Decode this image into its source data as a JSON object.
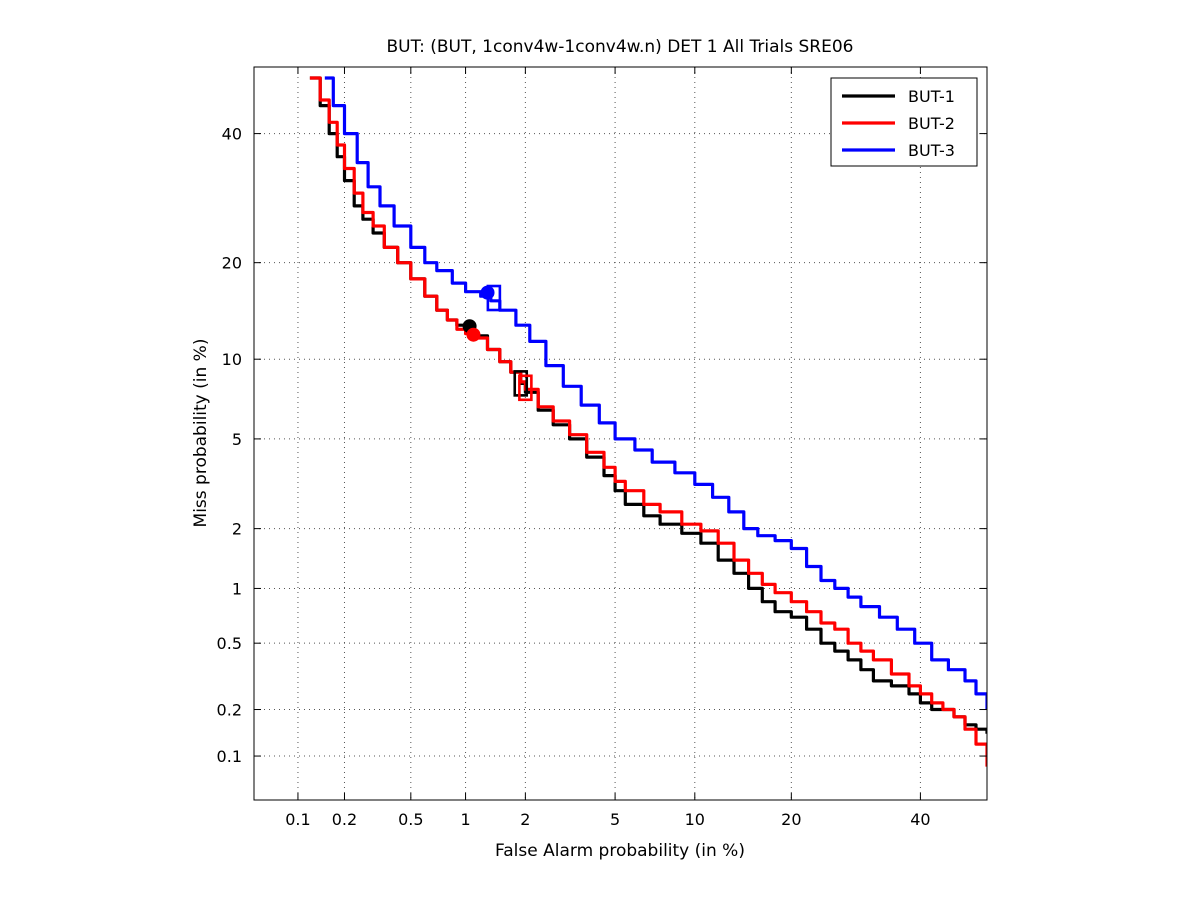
{
  "chart_data": {
    "type": "line",
    "title": "BUT: (BUT, 1conv4w-1conv4w.n) DET 1 All Trials SRE06",
    "xlabel": "False Alarm probability (in %)",
    "ylabel": "Miss probability (in %)",
    "scale": "normal-deviate (probit)",
    "xlim": [
      0.05,
      52
    ],
    "ylim": [
      0.05,
      52
    ],
    "xticks": [
      0.1,
      0.2,
      0.5,
      1,
      2,
      5,
      10,
      20,
      40
    ],
    "xtick_labels": [
      "0.1",
      "0.2",
      "0.5",
      "1",
      "2",
      "5",
      "10",
      "20",
      "40"
    ],
    "yticks": [
      0.1,
      0.2,
      0.5,
      1,
      2,
      5,
      10,
      20,
      40
    ],
    "ytick_labels": [
      "0.1",
      "0.2",
      "0.5",
      "1",
      "2",
      "5",
      "10",
      "20",
      "40"
    ],
    "grid": true,
    "legend_position": "top-right",
    "series": [
      {
        "name": "BUT-1",
        "color": "#000000",
        "x": [
          0.12,
          0.14,
          0.16,
          0.18,
          0.2,
          0.23,
          0.26,
          0.3,
          0.35,
          0.42,
          0.5,
          0.6,
          0.7,
          0.8,
          0.9,
          1.0,
          1.1,
          1.3,
          1.5,
          1.7,
          1.9,
          2.0,
          2.3,
          2.7,
          3.2,
          3.8,
          4.5,
          5.0,
          5.5,
          6.5,
          7.5,
          9.0,
          10.5,
          12.0,
          13.5,
          15.0,
          16.5,
          18.0,
          20.0,
          22.0,
          24.0,
          26.0,
          28.0,
          30.0,
          32.0,
          35.0,
          38.0,
          40.0,
          42.0,
          44.0,
          46.0,
          48.0,
          50.0,
          52.0
        ],
        "y": [
          50,
          45,
          40,
          36,
          32,
          28,
          26,
          24,
          22,
          20,
          18,
          16,
          14.5,
          13.5,
          13,
          12.5,
          12,
          10.8,
          9.8,
          9.0,
          8.2,
          7.6,
          6.5,
          5.7,
          5.0,
          4.2,
          3.5,
          3.0,
          2.6,
          2.3,
          2.1,
          1.9,
          1.7,
          1.4,
          1.2,
          1.0,
          0.85,
          0.75,
          0.7,
          0.6,
          0.5,
          0.45,
          0.4,
          0.35,
          0.3,
          0.28,
          0.25,
          0.22,
          0.2,
          0.2,
          0.18,
          0.16,
          0.15,
          0.14
        ]
      },
      {
        "name": "BUT-2",
        "color": "#ff0000",
        "x": [
          0.12,
          0.14,
          0.16,
          0.18,
          0.2,
          0.23,
          0.26,
          0.3,
          0.35,
          0.42,
          0.5,
          0.6,
          0.7,
          0.8,
          0.9,
          1.0,
          1.1,
          1.3,
          1.5,
          1.7,
          1.9,
          2.0,
          2.3,
          2.7,
          3.2,
          3.8,
          4.5,
          5.0,
          5.5,
          6.5,
          7.5,
          9.0,
          10.5,
          12.0,
          13.5,
          15.0,
          16.5,
          18.0,
          20.0,
          22.0,
          24.0,
          26.0,
          28.0,
          30.0,
          32.0,
          35.0,
          38.0,
          40.0,
          42.0,
          44.0,
          46.0,
          48.0,
          50.0,
          52.0
        ],
        "y": [
          50,
          46,
          42,
          38,
          34,
          30,
          27,
          25,
          22,
          20,
          18,
          16,
          14.5,
          13.5,
          12.6,
          12.2,
          11.8,
          10.8,
          9.8,
          9.0,
          8.3,
          7.8,
          6.7,
          5.9,
          5.2,
          4.4,
          3.8,
          3.3,
          3.0,
          2.6,
          2.4,
          2.1,
          1.95,
          1.7,
          1.4,
          1.2,
          1.05,
          0.95,
          0.85,
          0.75,
          0.65,
          0.6,
          0.5,
          0.45,
          0.4,
          0.33,
          0.28,
          0.25,
          0.22,
          0.2,
          0.18,
          0.15,
          0.12,
          0.085
        ]
      },
      {
        "name": "BUT-3",
        "color": "#0000ff",
        "x": [
          0.15,
          0.17,
          0.2,
          0.24,
          0.28,
          0.33,
          0.4,
          0.5,
          0.6,
          0.7,
          0.85,
          1.0,
          1.2,
          1.35,
          1.5,
          1.8,
          2.1,
          2.5,
          3.0,
          3.6,
          4.3,
          5.0,
          6.0,
          7.0,
          8.5,
          10.0,
          11.5,
          13.0,
          14.5,
          16.0,
          18.0,
          20.0,
          22.0,
          24.0,
          26.0,
          28.0,
          30.0,
          33.0,
          36.0,
          39.0,
          42.0,
          45.0,
          48.0,
          50.0,
          52.0
        ],
        "y": [
          50,
          45,
          40,
          35,
          31,
          28,
          25,
          22,
          20,
          19,
          17.5,
          16.5,
          16,
          15.5,
          14.5,
          13,
          11.5,
          9.5,
          8.0,
          6.8,
          5.8,
          5.0,
          4.5,
          4.0,
          3.6,
          3.2,
          2.8,
          2.4,
          2.0,
          1.85,
          1.75,
          1.6,
          1.3,
          1.1,
          1.0,
          0.9,
          0.8,
          0.7,
          0.6,
          0.5,
          0.4,
          0.35,
          0.3,
          0.25,
          0.2
        ]
      }
    ],
    "markers": [
      {
        "series": "BUT-1",
        "shape": "circle",
        "x": 1.05,
        "y": 12.9
      },
      {
        "series": "BUT-1",
        "shape": "square",
        "x": 1.9,
        "y": 8.2
      },
      {
        "series": "BUT-2",
        "shape": "circle",
        "x": 1.1,
        "y": 12.1
      },
      {
        "series": "BUT-2",
        "shape": "square",
        "x": 2.0,
        "y": 7.9
      },
      {
        "series": "BUT-3",
        "shape": "circle",
        "x": 1.3,
        "y": 16.4
      },
      {
        "series": "BUT-3",
        "shape": "square",
        "x": 1.4,
        "y": 15.8
      }
    ]
  }
}
